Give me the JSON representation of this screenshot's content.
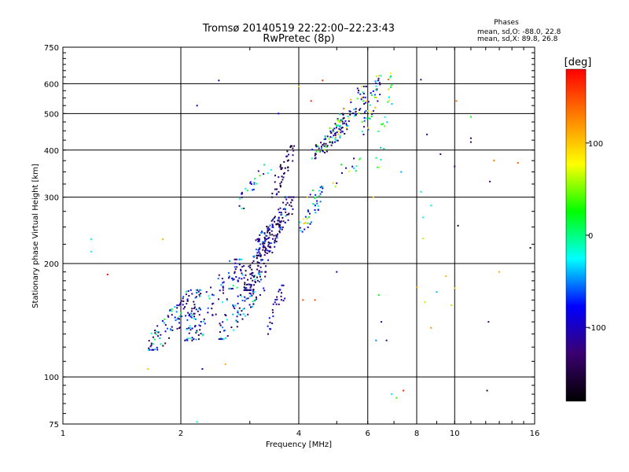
{
  "chart_data": {
    "type": "scatter",
    "title": "Tromsø 20140519 22:22:00–22:23:43",
    "subtitle": "RwPretec (8p)",
    "xlabel": "Frequency [MHz]",
    "ylabel": "Stationary phase Virtual Height [km]",
    "x_scale": "log",
    "y_scale": "log",
    "xlim": [
      1,
      16
    ],
    "ylim": [
      75,
      750
    ],
    "x_ticks": [
      1,
      2,
      4,
      6,
      8,
      10,
      16
    ],
    "y_ticks": [
      75,
      100,
      200,
      300,
      400,
      500,
      600,
      750
    ],
    "grid": true,
    "phases": {
      "heading": "Phases",
      "o_line": "mean, sd,O: -88.0, 22.8",
      "x_line": "mean, sd,X: 89.8, 26.8"
    },
    "colorbar": {
      "label": "[deg]",
      "range": [
        -180,
        180
      ],
      "ticks": [
        -100,
        0,
        100
      ],
      "colors": [
        "#000000",
        "#3a006f",
        "#0000ff",
        "#00ffff",
        "#00ff00",
        "#ffff00",
        "#ff8000",
        "#ff0000"
      ]
    },
    "clusters": [
      {
        "f": [
          1.65,
          2.25
        ],
        "h": [
          118,
          170
        ],
        "n": 110,
        "phase": [
          -150,
          20
        ],
        "seed": 11
      },
      {
        "f": [
          2.05,
          2.9
        ],
        "h": [
          125,
          205
        ],
        "n": 120,
        "phase": [
          -140,
          10
        ],
        "seed": 12
      },
      {
        "f": [
          2.5,
          3.3
        ],
        "h": [
          126,
          190
        ],
        "n": 90,
        "phase": [
          -150,
          0
        ],
        "seed": 13
      },
      {
        "f": [
          2.9,
          3.6
        ],
        "h": [
          170,
          260
        ],
        "n": 130,
        "phase": [
          -160,
          -40
        ],
        "seed": 14
      },
      {
        "f": [
          3.1,
          3.9
        ],
        "h": [
          210,
          300
        ],
        "n": 110,
        "phase": [
          -160,
          -40
        ],
        "seed": 15
      },
      {
        "f": [
          3.3,
          3.7
        ],
        "h": [
          130,
          175
        ],
        "n": 30,
        "phase": [
          -140,
          -60
        ],
        "seed": 16
      },
      {
        "f": [
          3.4,
          3.9
        ],
        "h": [
          300,
          410
        ],
        "n": 45,
        "phase": [
          -170,
          -80
        ],
        "seed": 17
      },
      {
        "f": [
          2.8,
          3.4
        ],
        "h": [
          280,
          370
        ],
        "n": 25,
        "phase": [
          -120,
          40
        ],
        "seed": 18
      },
      {
        "f": [
          4.0,
          4.7
        ],
        "h": [
          240,
          320
        ],
        "n": 40,
        "phase": [
          -100,
          120
        ],
        "seed": 19
      },
      {
        "f": [
          4.3,
          5.3
        ],
        "h": [
          380,
          470
        ],
        "n": 80,
        "phase": [
          -160,
          80
        ],
        "seed": 20
      },
      {
        "f": [
          4.8,
          6.0
        ],
        "h": [
          420,
          590
        ],
        "n": 80,
        "phase": [
          -160,
          120
        ],
        "seed": 21
      },
      {
        "f": [
          5.8,
          6.5
        ],
        "h": [
          440,
          630
        ],
        "n": 45,
        "phase": [
          -120,
          120
        ],
        "seed": 22
      },
      {
        "f": [
          6.3,
          7.0
        ],
        "h": [
          360,
          640
        ],
        "n": 25,
        "phase": [
          -40,
          140
        ],
        "seed": 23
      },
      {
        "f": [
          4.2,
          5.8
        ],
        "h": [
          300,
          380
        ],
        "n": 20,
        "phase": [
          -120,
          100
        ],
        "seed": 24
      }
    ],
    "points": [
      {
        "f": 1.18,
        "h": 232,
        "phase": -10
      },
      {
        "f": 1.18,
        "h": 215,
        "phase": -20
      },
      {
        "f": 1.3,
        "h": 187,
        "phase": 175
      },
      {
        "f": 1.65,
        "h": 105,
        "phase": 100
      },
      {
        "f": 1.8,
        "h": 232,
        "phase": 110
      },
      {
        "f": 2.2,
        "h": 525,
        "phase": -110
      },
      {
        "f": 2.27,
        "h": 105,
        "phase": -110
      },
      {
        "f": 2.5,
        "h": 612,
        "phase": -90
      },
      {
        "f": 2.6,
        "h": 108,
        "phase": 110
      },
      {
        "f": 2.2,
        "h": 76,
        "phase": -20
      },
      {
        "f": 3.55,
        "h": 500,
        "phase": -80
      },
      {
        "f": 4.0,
        "h": 590,
        "phase": 100
      },
      {
        "f": 4.3,
        "h": 540,
        "phase": 170
      },
      {
        "f": 4.6,
        "h": 612,
        "phase": 160
      },
      {
        "f": 5.0,
        "h": 190,
        "phase": -110
      },
      {
        "f": 4.4,
        "h": 160,
        "phase": 150
      },
      {
        "f": 4.1,
        "h": 160,
        "phase": 150
      },
      {
        "f": 6.2,
        "h": 300,
        "phase": 100
      },
      {
        "f": 6.4,
        "h": 165,
        "phase": 20
      },
      {
        "f": 6.5,
        "h": 140,
        "phase": -120
      },
      {
        "f": 6.7,
        "h": 125,
        "phase": -130
      },
      {
        "f": 6.3,
        "h": 125,
        "phase": -50
      },
      {
        "f": 7.3,
        "h": 350,
        "phase": -40
      },
      {
        "f": 7.1,
        "h": 88,
        "phase": 40
      },
      {
        "f": 7.4,
        "h": 92,
        "phase": 170
      },
      {
        "f": 6.9,
        "h": 90,
        "phase": -20
      },
      {
        "f": 8.2,
        "h": 615,
        "phase": -120
      },
      {
        "f": 8.5,
        "h": 440,
        "phase": -120
      },
      {
        "f": 9.2,
        "h": 390,
        "phase": -130
      },
      {
        "f": 8.2,
        "h": 310,
        "phase": -30
      },
      {
        "f": 8.7,
        "h": 285,
        "phase": -20
      },
      {
        "f": 8.3,
        "h": 265,
        "phase": -20
      },
      {
        "f": 8.3,
        "h": 233,
        "phase": 60
      },
      {
        "f": 8.0,
        "h": 173,
        "phase": 120
      },
      {
        "f": 8.4,
        "h": 158,
        "phase": 60
      },
      {
        "f": 9.0,
        "h": 168,
        "phase": -40
      },
      {
        "f": 8.7,
        "h": 135,
        "phase": 120
      },
      {
        "f": 9.5,
        "h": 185,
        "phase": 110
      },
      {
        "f": 9.8,
        "h": 155,
        "phase": 60
      },
      {
        "f": 10.0,
        "h": 362,
        "phase": -130
      },
      {
        "f": 10.1,
        "h": 540,
        "phase": 140
      },
      {
        "f": 10.2,
        "h": 252,
        "phase": -170
      },
      {
        "f": 10.0,
        "h": 172,
        "phase": 100
      },
      {
        "f": 11.0,
        "h": 490,
        "phase": 20
      },
      {
        "f": 11.0,
        "h": 430,
        "phase": -140
      },
      {
        "f": 11.0,
        "h": 420,
        "phase": -130
      },
      {
        "f": 12.3,
        "h": 330,
        "phase": -130
      },
      {
        "f": 12.2,
        "h": 140,
        "phase": -130
      },
      {
        "f": 12.1,
        "h": 92,
        "phase": -150
      },
      {
        "f": 12.6,
        "h": 375,
        "phase": 130
      },
      {
        "f": 13.0,
        "h": 190,
        "phase": 110
      },
      {
        "f": 14.5,
        "h": 370,
        "phase": 140
      },
      {
        "f": 15.6,
        "h": 220,
        "phase": -150
      }
    ]
  }
}
